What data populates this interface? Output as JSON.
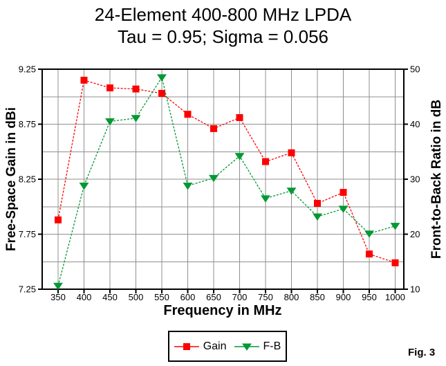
{
  "title": {
    "line1": "24-Element 400-800 MHz LPDA",
    "line2": "Tau = 0.95; Sigma = 0.056"
  },
  "figure_label": "Fig. 3",
  "colors": {
    "gain_series": "#ff0000",
    "fb_series": "#009933",
    "gridline": "#8f8f8f",
    "axis_border": "#000000",
    "background": "#ffffff"
  },
  "chart_data": {
    "type": "line",
    "title": "24-Element 400-800 MHz LPDA",
    "subtitle": "Tau = 0.95; Sigma = 0.056",
    "x": [
      350,
      400,
      450,
      500,
      550,
      600,
      650,
      700,
      750,
      800,
      850,
      900,
      950,
      1000
    ],
    "x_tick_labels": [
      "350",
      "400",
      "450",
      "500",
      "550",
      "600",
      "650",
      "700",
      "750",
      "800",
      "850",
      "900",
      "950",
      "1000"
    ],
    "xlabel": "Frequency in MHz",
    "grid": true,
    "legend_position": "bottom",
    "left_axis": {
      "label": "Free-Space Gain in dBi",
      "min": 7.25,
      "max": 9.25,
      "ticks": [
        9.25,
        8.75,
        8.25,
        7.75,
        7.25
      ],
      "tick_labels": [
        "9.25",
        "8.75",
        "8.25",
        "7.75",
        "7.25"
      ],
      "grid_step": 0.25
    },
    "right_axis": {
      "label": "Front-to-Back Ratio in dB",
      "min": 10,
      "max": 50,
      "ticks": [
        50,
        40,
        30,
        20,
        10
      ],
      "tick_labels": [
        "50",
        "40",
        "30",
        "20",
        "10"
      ],
      "grid_step": 5
    },
    "series": [
      {
        "name": "Gain",
        "axis": "left",
        "marker": "square",
        "color": "#ff0000",
        "values": [
          7.88,
          9.15,
          9.08,
          9.07,
          9.03,
          8.84,
          8.71,
          8.81,
          8.41,
          8.49,
          8.03,
          8.13,
          7.57,
          7.49
        ]
      },
      {
        "name": "F-B",
        "axis": "right",
        "marker": "triangle-down",
        "color": "#009933",
        "values": [
          10.6,
          28.8,
          40.5,
          41.1,
          48.5,
          28.8,
          30.2,
          34.2,
          26.5,
          27.9,
          23.2,
          24.6,
          20.1,
          21.5
        ]
      }
    ]
  }
}
